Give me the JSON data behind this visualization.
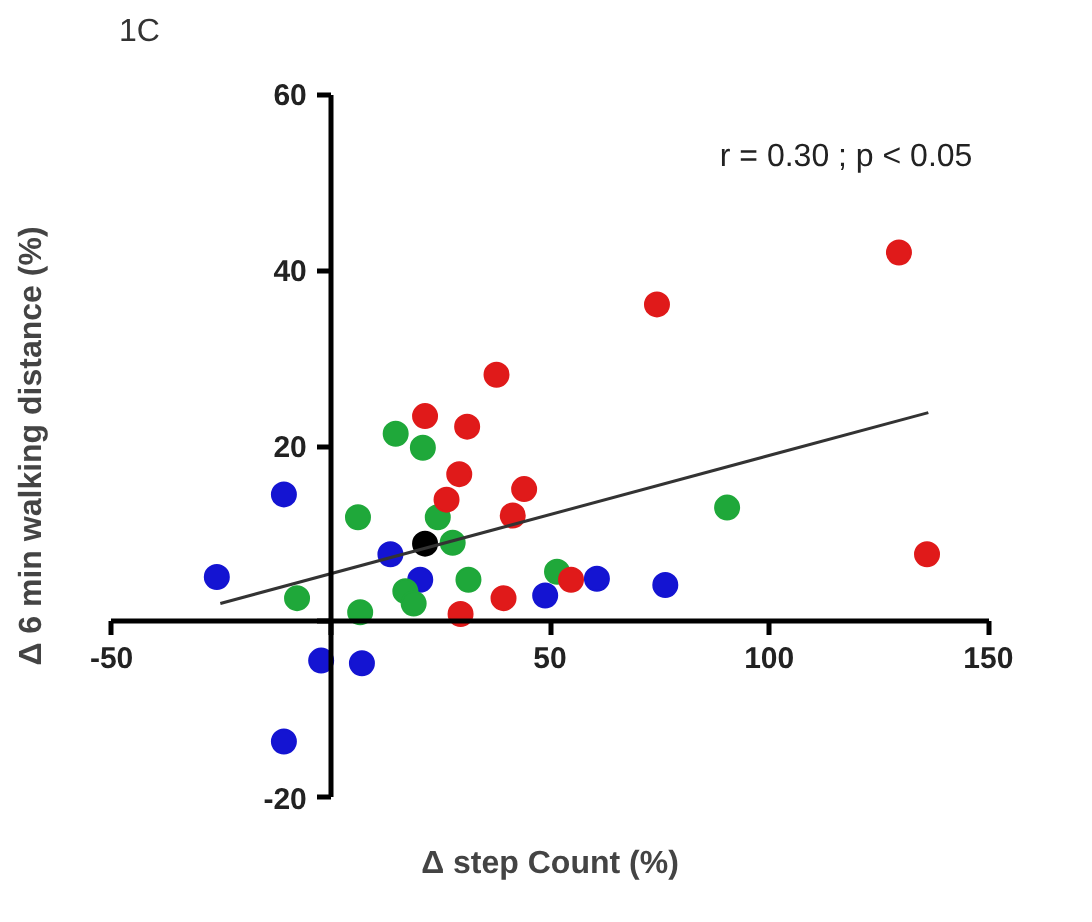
{
  "chart_data": {
    "type": "scatter",
    "title": "1C",
    "xlabel": "Δ step Count (%)",
    "ylabel": "Δ 6 min walking distance (%)",
    "annotations": [
      "r = 0.30 ; p < 0.05"
    ],
    "marker": "circle",
    "grid": false,
    "xlim": [
      -50,
      150
    ],
    "xticks": [
      -50,
      {
        "value": 0,
        "label": null
      },
      50,
      100,
      150
    ],
    "ylim": [
      -20,
      60
    ],
    "yticks": [
      -20,
      {
        "value": 0,
        "label": null
      },
      20,
      40,
      60
    ],
    "series": [
      {
        "color": "#1414d2",
        "x": [
          -26,
          -10.7,
          -2.2,
          7.1,
          -10.7,
          13.6,
          20.4,
          48.9,
          60.7,
          76.3
        ],
        "values": [
          5.1,
          14.5,
          -4.4,
          -4.7,
          -13.6,
          7.7,
          4.8,
          3.0,
          4.9,
          4.2
        ]
      },
      {
        "color": "#1fa83a",
        "x": [
          -7.7,
          6.2,
          6.7,
          14.8,
          21.0,
          17,
          18.9,
          24.4,
          27.8,
          31.4,
          51.6,
          90.4
        ],
        "values": [
          2.7,
          11.9,
          1.1,
          21.4,
          19.8,
          3.5,
          2.1,
          11.9,
          9.0,
          4.8,
          5.7,
          13.0
        ]
      },
      {
        "color": "#e01a1a",
        "x": [
          21.5,
          31.1,
          29.3,
          26.4,
          37.8,
          44.1,
          41.5,
          39.4,
          29.6,
          54.8,
          74.4,
          129.6,
          136
        ],
        "values": [
          23.4,
          22.2,
          16.8,
          13.9,
          28.1,
          15.1,
          12.1,
          2.7,
          0.9,
          4.8,
          36.1,
          42.0,
          7.7
        ]
      },
      {
        "color": "#000000",
        "x": [
          21.5
        ],
        "values": [
          8.9
        ]
      },
      {
        "type": "line",
        "marker": "none",
        "color": "#333333",
        "x": [
          -25.2,
          136.3
        ],
        "values": [
          2.1,
          23.8
        ]
      }
    ]
  }
}
